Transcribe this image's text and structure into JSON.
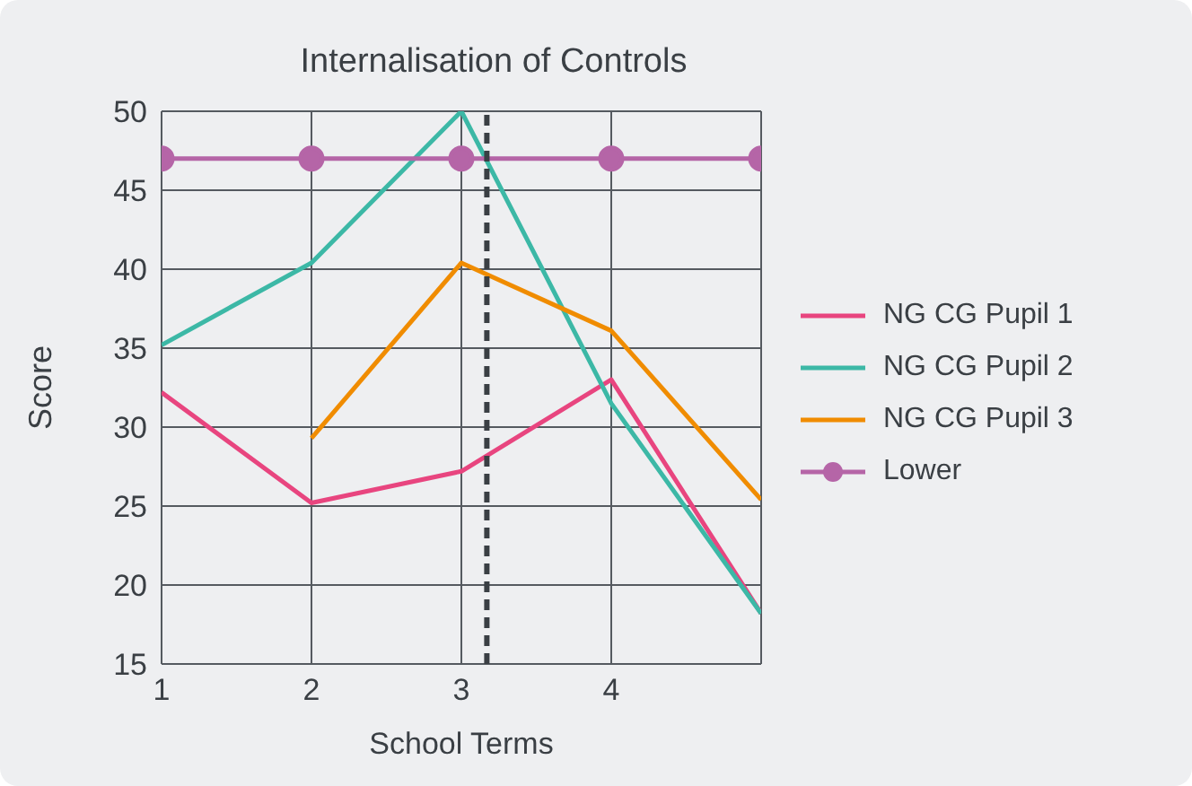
{
  "chart_data": {
    "type": "line",
    "title": "Internalisation of Controls",
    "xlabel": "School Terms",
    "ylabel": "Score",
    "x": [
      1,
      2,
      3,
      4,
      5
    ],
    "series": [
      {
        "name": "NG CG Pupil 1",
        "color": "#e8457f",
        "values": [
          32.2,
          25.2,
          27.2,
          33,
          18.2
        ]
      },
      {
        "name": "NG CG Pupil 2",
        "color": "#3cb8a6",
        "values": [
          35.2,
          40.4,
          50,
          31.5,
          18.2
        ]
      },
      {
        "name": "NG CG Pupil 3",
        "color": "#f08c00",
        "values": [
          null,
          29.3,
          40.4,
          36.1,
          25.4
        ]
      },
      {
        "name": "Lower",
        "color": "#b565a7",
        "values": [
          47,
          47,
          47,
          47,
          47
        ],
        "marker": "circle"
      }
    ],
    "xlim": [
      1,
      5
    ],
    "xticks": [
      1,
      2,
      3,
      4
    ],
    "ylim": [
      15,
      50
    ],
    "yticks": [
      15,
      20,
      25,
      30,
      35,
      40,
      45,
      50
    ],
    "ref_lines": [
      {
        "axis": "x",
        "value": 3.17,
        "color": "#3a3f44",
        "line_style": "dashed"
      }
    ],
    "grid": true,
    "legend": "right",
    "marker": "none"
  }
}
